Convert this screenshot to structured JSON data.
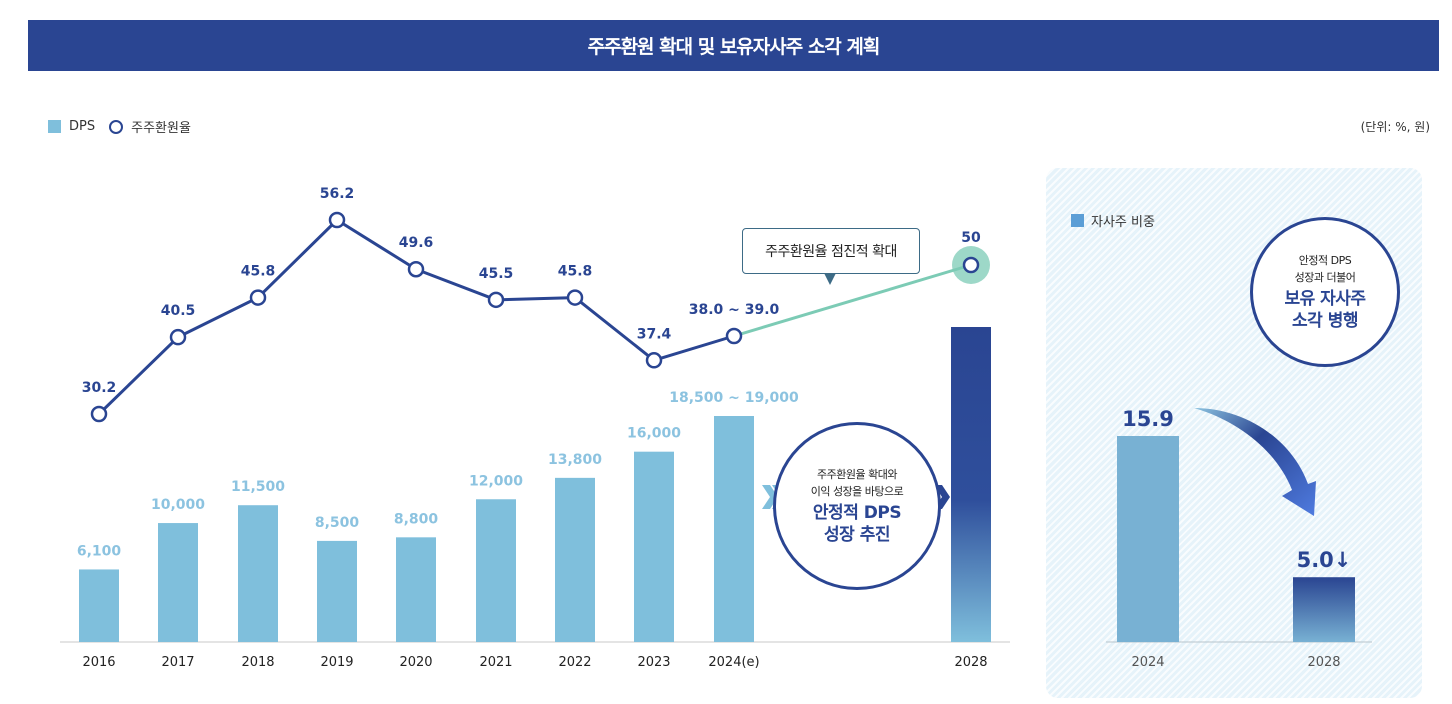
{
  "header": {
    "title": "주주환원 확대 및 보유자사주 소각 계획"
  },
  "legend": {
    "dps_label": "DPS",
    "ratio_label": "주주환원율"
  },
  "unit_label": "(단위: %, 원)",
  "callout": {
    "text": "주주환원율 점진적 확대"
  },
  "mid_note": {
    "line1": "주주환원율 확대와",
    "line2": "이익 성장을 바탕으로",
    "line3": "안정적 DPS",
    "line4": "성장 추진"
  },
  "side": {
    "legend_label": "자사주 비중",
    "note": {
      "line1": "안정적 DPS",
      "line2": "성장과 더불어",
      "line3": "보유 자사주",
      "line4": "소각 병행"
    }
  },
  "colors": {
    "primary": "#2a4592",
    "bar": "#7fbfdc",
    "bar_label": "#8cc3e0",
    "projection_line": "#7ccbb5",
    "side_bar": "#78b1d3"
  },
  "chart_data": [
    {
      "type": "bar+line",
      "title": "주주환원 확대 및 보유자사주 소각 계획",
      "categories": [
        "2016",
        "2017",
        "2018",
        "2019",
        "2020",
        "2021",
        "2022",
        "2023",
        "2024(e)",
        "2028"
      ],
      "series": [
        {
          "name": "DPS",
          "kind": "bar",
          "unit": "원",
          "values": [
            6100,
            10000,
            11500,
            8500,
            8800,
            12000,
            13800,
            16000,
            19000,
            null
          ],
          "labels": [
            "6,100",
            "10,000",
            "11,500",
            "8,500",
            "8,800",
            "12,000",
            "13,800",
            "16,000",
            "18,500 ~ 19,000",
            ""
          ],
          "note": "2028 bar shown as gradient without a value label"
        },
        {
          "name": "주주환원율",
          "kind": "line",
          "unit": "%",
          "values": [
            30.2,
            40.5,
            45.8,
            56.2,
            49.6,
            45.5,
            45.8,
            37.4,
            38.5,
            50
          ],
          "labels": [
            "30.2",
            "40.5",
            "45.8",
            "56.2",
            "49.6",
            "45.5",
            "45.8",
            "37.4",
            "38.0 ~  39.0",
            "50"
          ]
        }
      ],
      "xlabel": "",
      "ylabel": "",
      "legend": "top-left",
      "grid": false
    },
    {
      "type": "bar",
      "title": "자사주 비중",
      "categories": [
        "2024",
        "2028"
      ],
      "values": [
        15.9,
        5.0
      ],
      "labels": [
        "15.9",
        "5.0↓"
      ],
      "unit": "%",
      "legend": "top-left",
      "grid": false
    }
  ]
}
